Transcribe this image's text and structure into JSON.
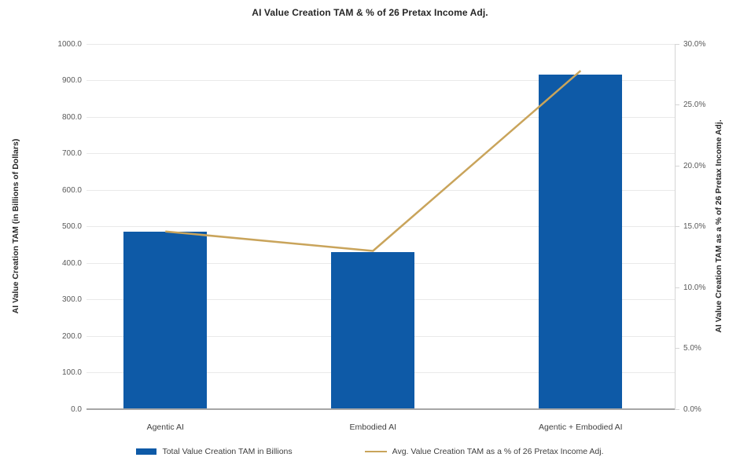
{
  "title": "AI Value Creation TAM & % of 26 Pretax Income Adj.",
  "chart_data": {
    "type": "bar",
    "subtype": "dual-axis bar + line combo",
    "categories": [
      "Agentic AI",
      "Embodied AI",
      "Agentic + Embodied AI"
    ],
    "series": [
      {
        "name": "Total Value Creation TAM in Billions",
        "type": "bar",
        "axis": "left",
        "values": [
          485,
          430,
          917
        ],
        "color": "#0e5aa7"
      },
      {
        "name": "Avg. Value Creation TAM as a % of 26 Pretax Income Adj.",
        "type": "line",
        "axis": "right",
        "values": [
          14.6,
          13.0,
          27.8
        ],
        "color": "#c9a45b"
      }
    ],
    "left_axis": {
      "label": "AI Value Creation TAM (in Billions of Dollars)",
      "min": 0,
      "max": 1000,
      "step": 100,
      "tick_labels": [
        "0.0",
        "100.0",
        "200.0",
        "300.0",
        "400.0",
        "500.0",
        "600.0",
        "700.0",
        "800.0",
        "900.0",
        "1000.0"
      ]
    },
    "right_axis": {
      "label": "AI Value Creation TAM as a % of 26 Pretax Income Adj.",
      "min": 0,
      "max": 30,
      "step": 5,
      "tick_labels": [
        "0.0%",
        "5.0%",
        "10.0%",
        "15.0%",
        "20.0%",
        "25.0%",
        "30.0%"
      ]
    },
    "grid": "horizontal",
    "legend_position": "bottom"
  },
  "legend": {
    "items": [
      {
        "label": "Total Value Creation TAM in Billions",
        "swatch": "bar-swatch",
        "color": "#0e5aa7"
      },
      {
        "label": "Avg. Value Creation TAM as a % of 26 Pretax Income Adj.",
        "swatch": "line-swatch",
        "color": "#c9a45b"
      }
    ]
  },
  "colors": {
    "bar": "#0e5aa7",
    "line": "#c9a45b",
    "gridline": "#e9e9e9",
    "axis_baseline": "#a6a6a6",
    "tick_text": "#595959",
    "title_text": "#262626"
  }
}
